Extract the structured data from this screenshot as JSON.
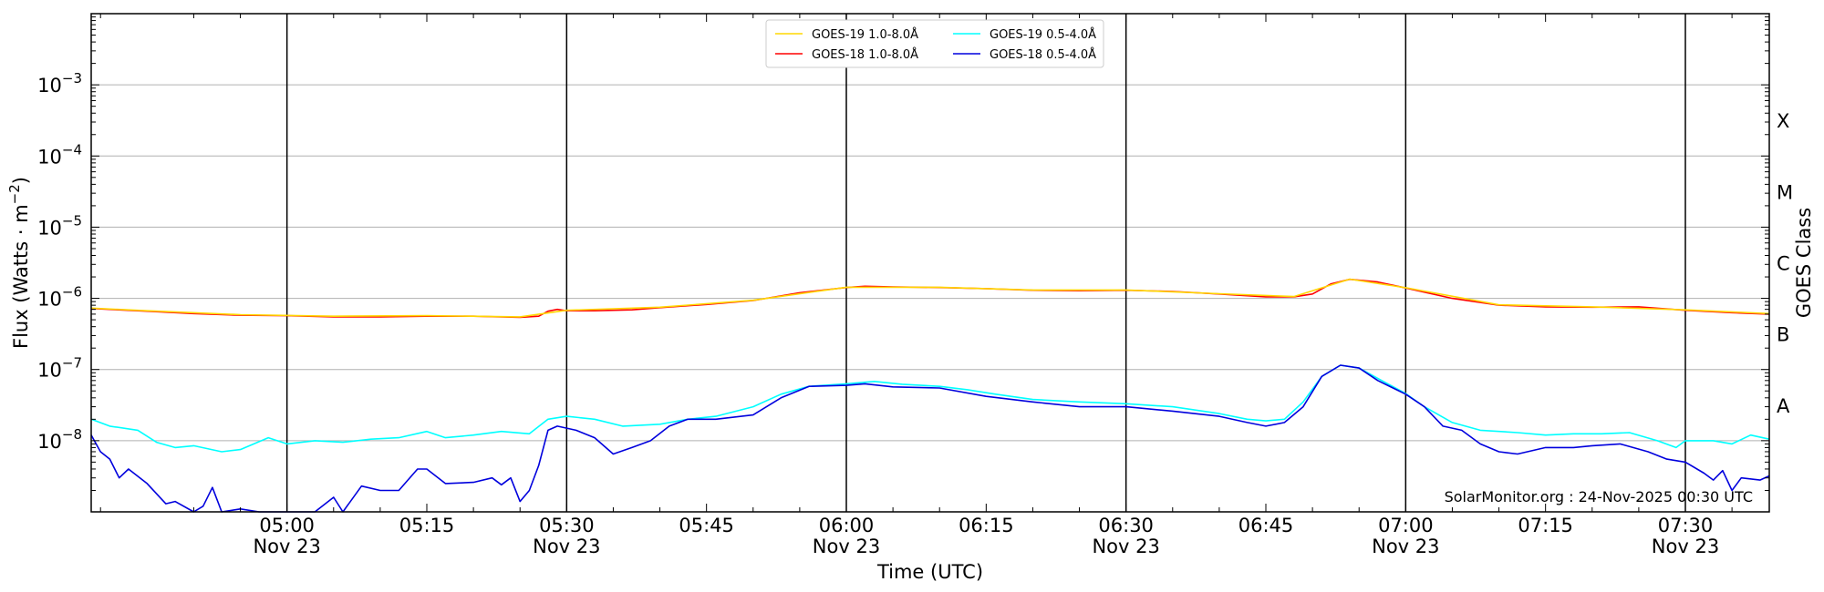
{
  "chart_data": {
    "type": "line",
    "xlabel": "Time (UTC)",
    "ylabel": "Flux (Watts · m^-2)",
    "ylabel_right": "GOES Class",
    "yscale": "log",
    "ylim": [
      1e-09,
      0.01
    ],
    "xlim": [
      "2025-11-23 04:39",
      "2025-11-23 07:39"
    ],
    "grid": "horizontal lines at each decade",
    "legend_position": "top-center",
    "credit": "SolarMonitor.org : 24-Nov-2025 00:30 UTC",
    "yticks": [
      {
        "value": 0.001,
        "base": "10",
        "exp": "−3"
      },
      {
        "value": 0.0001,
        "base": "10",
        "exp": "−4"
      },
      {
        "value": 1e-05,
        "base": "10",
        "exp": "−5"
      },
      {
        "value": 1e-06,
        "base": "10",
        "exp": "−6"
      },
      {
        "value": 1e-07,
        "base": "10",
        "exp": "−7"
      },
      {
        "value": 1e-08,
        "base": "10",
        "exp": "−8"
      }
    ],
    "xticks": [
      {
        "time": "2025-11-23 05:00",
        "label": "05:00",
        "date": "Nov 23",
        "vline": true
      },
      {
        "time": "2025-11-23 05:15",
        "label": "05:15",
        "date": "",
        "vline": false
      },
      {
        "time": "2025-11-23 05:30",
        "label": "05:30",
        "date": "Nov 23",
        "vline": true
      },
      {
        "time": "2025-11-23 05:45",
        "label": "05:45",
        "date": "",
        "vline": false
      },
      {
        "time": "2025-11-23 06:00",
        "label": "06:00",
        "date": "Nov 23",
        "vline": true
      },
      {
        "time": "2025-11-23 06:15",
        "label": "06:15",
        "date": "",
        "vline": false
      },
      {
        "time": "2025-11-23 06:30",
        "label": "06:30",
        "date": "Nov 23",
        "vline": true
      },
      {
        "time": "2025-11-23 06:45",
        "label": "06:45",
        "date": "",
        "vline": false
      },
      {
        "time": "2025-11-23 07:00",
        "label": "07:00",
        "date": "Nov 23",
        "vline": true
      },
      {
        "time": "2025-11-23 07:15",
        "label": "07:15",
        "date": "",
        "vline": false
      },
      {
        "time": "2025-11-23 07:30",
        "label": "07:30",
        "date": "Nov 23",
        "vline": true
      }
    ],
    "goes_classes": [
      {
        "label": "X",
        "value": 0.000316
      },
      {
        "label": "M",
        "value": 3.16e-05
      },
      {
        "label": "C",
        "value": 3.16e-06
      },
      {
        "label": "B",
        "value": 3.16e-07
      },
      {
        "label": "A",
        "value": 3.16e-08
      }
    ],
    "legend": [
      {
        "name": "GOES-19 1.0-8.0Å",
        "color": "#ffd700"
      },
      {
        "name": "GOES-19 0.5-4.0Å",
        "color": "#00ffff"
      },
      {
        "name": "GOES-18 1.0-8.0Å",
        "color": "#ff0000"
      },
      {
        "name": "GOES-18 0.5-4.0Å",
        "color": "#0000dd"
      }
    ],
    "series": [
      {
        "name": "GOES-18 1.0-8.0Å",
        "color": "#ff0000",
        "points": [
          [
            "04:39",
            7.2e-07
          ],
          [
            "04:45",
            6.6e-07
          ],
          [
            "04:50",
            6.1e-07
          ],
          [
            "04:55",
            5.8e-07
          ],
          [
            "05:00",
            5.7e-07
          ],
          [
            "05:05",
            5.5e-07
          ],
          [
            "05:10",
            5.5e-07
          ],
          [
            "05:15",
            5.6e-07
          ],
          [
            "05:20",
            5.6e-07
          ],
          [
            "05:25",
            5.4e-07
          ],
          [
            "05:27",
            5.6e-07
          ],
          [
            "05:28",
            6.6e-07
          ],
          [
            "05:29",
            7e-07
          ],
          [
            "05:30",
            6.7e-07
          ],
          [
            "05:33",
            6.7e-07
          ],
          [
            "05:37",
            6.9e-07
          ],
          [
            "05:40",
            7.4e-07
          ],
          [
            "05:45",
            8.2e-07
          ],
          [
            "05:50",
            9.3e-07
          ],
          [
            "05:55",
            1.2e-06
          ],
          [
            "06:00",
            1.42e-06
          ],
          [
            "06:02",
            1.48e-06
          ],
          [
            "06:05",
            1.45e-06
          ],
          [
            "06:10",
            1.42e-06
          ],
          [
            "06:15",
            1.37e-06
          ],
          [
            "06:20",
            1.3e-06
          ],
          [
            "06:25",
            1.28e-06
          ],
          [
            "06:30",
            1.3e-06
          ],
          [
            "06:35",
            1.25e-06
          ],
          [
            "06:40",
            1.15e-06
          ],
          [
            "06:45",
            1.05e-06
          ],
          [
            "06:48",
            1.05e-06
          ],
          [
            "06:50",
            1.15e-06
          ],
          [
            "06:52",
            1.6e-06
          ],
          [
            "06:54",
            1.85e-06
          ],
          [
            "06:57",
            1.7e-06
          ],
          [
            "07:00",
            1.4e-06
          ],
          [
            "07:05",
            1e-06
          ],
          [
            "07:10",
            8e-07
          ],
          [
            "07:15",
            7.6e-07
          ],
          [
            "07:20",
            7.5e-07
          ],
          [
            "07:25",
            7.6e-07
          ],
          [
            "07:30",
            6.8e-07
          ],
          [
            "07:35",
            6.3e-07
          ],
          [
            "07:39",
            6e-07
          ]
        ]
      },
      {
        "name": "GOES-19 1.0-8.0Å",
        "color": "#ffd700",
        "points": [
          [
            "04:39",
            7.3e-07
          ],
          [
            "04:45",
            6.7e-07
          ],
          [
            "04:55",
            5.9e-07
          ],
          [
            "05:05",
            5.6e-07
          ],
          [
            "05:15",
            5.7e-07
          ],
          [
            "05:25",
            5.5e-07
          ],
          [
            "05:30",
            6.8e-07
          ],
          [
            "05:40",
            7.5e-07
          ],
          [
            "05:50",
            9.4e-07
          ],
          [
            "06:00",
            1.43e-06
          ],
          [
            "06:10",
            1.43e-06
          ],
          [
            "06:20",
            1.31e-06
          ],
          [
            "06:30",
            1.31e-06
          ],
          [
            "06:40",
            1.16e-06
          ],
          [
            "06:48",
            1.06e-06
          ],
          [
            "06:54",
            1.86e-06
          ],
          [
            "07:00",
            1.41e-06
          ],
          [
            "07:10",
            8.1e-07
          ],
          [
            "07:20",
            7.6e-07
          ],
          [
            "07:30",
            6.9e-07
          ],
          [
            "07:39",
            6.1e-07
          ]
        ]
      },
      {
        "name": "GOES-19 0.5-4.0Å",
        "color": "#00ffff",
        "points": [
          [
            "04:39",
            2e-08
          ],
          [
            "04:41",
            1.6e-08
          ],
          [
            "04:44",
            1.4e-08
          ],
          [
            "04:46",
            9.5e-09
          ],
          [
            "04:48",
            8e-09
          ],
          [
            "04:50",
            8.5e-09
          ],
          [
            "04:53",
            7e-09
          ],
          [
            "04:55",
            7.5e-09
          ],
          [
            "04:58",
            1.1e-08
          ],
          [
            "05:00",
            9e-09
          ],
          [
            "05:03",
            1e-08
          ],
          [
            "05:06",
            9.5e-09
          ],
          [
            "05:09",
            1.05e-08
          ],
          [
            "05:12",
            1.1e-08
          ],
          [
            "05:15",
            1.35e-08
          ],
          [
            "05:17",
            1.1e-08
          ],
          [
            "05:20",
            1.2e-08
          ],
          [
            "05:23",
            1.35e-08
          ],
          [
            "05:26",
            1.25e-08
          ],
          [
            "05:28",
            2e-08
          ],
          [
            "05:30",
            2.2e-08
          ],
          [
            "05:33",
            2e-08
          ],
          [
            "05:36",
            1.6e-08
          ],
          [
            "05:40",
            1.7e-08
          ],
          [
            "05:43",
            2e-08
          ],
          [
            "05:46",
            2.2e-08
          ],
          [
            "05:50",
            3e-08
          ],
          [
            "05:53",
            4.5e-08
          ],
          [
            "05:56",
            5.8e-08
          ],
          [
            "06:00",
            6.3e-08
          ],
          [
            "06:03",
            6.8e-08
          ],
          [
            "06:06",
            6.2e-08
          ],
          [
            "06:10",
            5.8e-08
          ],
          [
            "06:13",
            5.2e-08
          ],
          [
            "06:16",
            4.5e-08
          ],
          [
            "06:20",
            3.8e-08
          ],
          [
            "06:25",
            3.5e-08
          ],
          [
            "06:30",
            3.3e-08
          ],
          [
            "06:35",
            3e-08
          ],
          [
            "06:40",
            2.4e-08
          ],
          [
            "06:43",
            2e-08
          ],
          [
            "06:45",
            1.9e-08
          ],
          [
            "06:47",
            2e-08
          ],
          [
            "06:49",
            3.5e-08
          ],
          [
            "06:51",
            8e-08
          ],
          [
            "06:53",
            1.15e-07
          ],
          [
            "06:55",
            1.05e-07
          ],
          [
            "06:57",
            7.5e-08
          ],
          [
            "07:00",
            4.6e-08
          ],
          [
            "07:02",
            3e-08
          ],
          [
            "07:05",
            1.8e-08
          ],
          [
            "07:08",
            1.4e-08
          ],
          [
            "07:12",
            1.3e-08
          ],
          [
            "07:15",
            1.2e-08
          ],
          [
            "07:18",
            1.25e-08
          ],
          [
            "07:21",
            1.25e-08
          ],
          [
            "07:24",
            1.3e-08
          ],
          [
            "07:27",
            1e-08
          ],
          [
            "07:29",
            8e-09
          ],
          [
            "07:30",
            1e-08
          ],
          [
            "07:33",
            1e-08
          ],
          [
            "07:35",
            9e-09
          ],
          [
            "07:37",
            1.2e-08
          ],
          [
            "07:39",
            1.05e-08
          ]
        ]
      },
      {
        "name": "GOES-18 0.5-4.0Å",
        "color": "#0000dd",
        "points": [
          [
            "04:39",
            1.2e-08
          ],
          [
            "04:40",
            7e-09
          ],
          [
            "04:41",
            5.5e-09
          ],
          [
            "04:42",
            3e-09
          ],
          [
            "04:43",
            4e-09
          ],
          [
            "04:45",
            2.5e-09
          ],
          [
            "04:47",
            1.3e-09
          ],
          [
            "04:48",
            1.4e-09
          ],
          [
            "04:50",
            1e-09
          ],
          [
            "04:51",
            1.2e-09
          ],
          [
            "04:52",
            2.2e-09
          ],
          [
            "04:53",
            1e-09
          ],
          [
            "04:55",
            1.1e-09
          ],
          [
            "04:57",
            1e-09
          ],
          [
            "05:00",
            1e-09
          ],
          [
            "05:03",
            1e-09
          ],
          [
            "05:05",
            1.6e-09
          ],
          [
            "05:06",
            1e-09
          ],
          [
            "05:08",
            2.3e-09
          ],
          [
            "05:10",
            2e-09
          ],
          [
            "05:12",
            2e-09
          ],
          [
            "05:14",
            4e-09
          ],
          [
            "05:15",
            4e-09
          ],
          [
            "05:17",
            2.5e-09
          ],
          [
            "05:20",
            2.6e-09
          ],
          [
            "05:22",
            3e-09
          ],
          [
            "05:23",
            2.4e-09
          ],
          [
            "05:24",
            3e-09
          ],
          [
            "05:25",
            1.4e-09
          ],
          [
            "05:26",
            2e-09
          ],
          [
            "05:27",
            4.5e-09
          ],
          [
            "05:28",
            1.4e-08
          ],
          [
            "05:29",
            1.6e-08
          ],
          [
            "05:30",
            1.5e-08
          ],
          [
            "05:31",
            1.4e-08
          ],
          [
            "05:33",
            1.1e-08
          ],
          [
            "05:35",
            6.5e-09
          ],
          [
            "05:37",
            8e-09
          ],
          [
            "05:39",
            1e-08
          ],
          [
            "05:41",
            1.6e-08
          ],
          [
            "05:43",
            2e-08
          ],
          [
            "05:46",
            2e-08
          ],
          [
            "05:50",
            2.3e-08
          ],
          [
            "05:53",
            4e-08
          ],
          [
            "05:56",
            5.8e-08
          ],
          [
            "06:00",
            6e-08
          ],
          [
            "06:02",
            6.3e-08
          ],
          [
            "06:05",
            5.7e-08
          ],
          [
            "06:10",
            5.5e-08
          ],
          [
            "06:15",
            4.2e-08
          ],
          [
            "06:20",
            3.5e-08
          ],
          [
            "06:25",
            3e-08
          ],
          [
            "06:30",
            3e-08
          ],
          [
            "06:35",
            2.6e-08
          ],
          [
            "06:40",
            2.2e-08
          ],
          [
            "06:43",
            1.8e-08
          ],
          [
            "06:45",
            1.6e-08
          ],
          [
            "06:47",
            1.8e-08
          ],
          [
            "06:49",
            3e-08
          ],
          [
            "06:51",
            8e-08
          ],
          [
            "06:53",
            1.15e-07
          ],
          [
            "06:55",
            1.05e-07
          ],
          [
            "06:57",
            7e-08
          ],
          [
            "07:00",
            4.5e-08
          ],
          [
            "07:02",
            3e-08
          ],
          [
            "07:04",
            1.6e-08
          ],
          [
            "07:06",
            1.4e-08
          ],
          [
            "07:08",
            9e-09
          ],
          [
            "07:10",
            7e-09
          ],
          [
            "07:12",
            6.5e-09
          ],
          [
            "07:15",
            8e-09
          ],
          [
            "07:18",
            8e-09
          ],
          [
            "07:20",
            8.5e-09
          ],
          [
            "07:23",
            9e-09
          ],
          [
            "07:26",
            7e-09
          ],
          [
            "07:28",
            5.5e-09
          ],
          [
            "07:30",
            5e-09
          ],
          [
            "07:32",
            3.5e-09
          ],
          [
            "07:33",
            2.8e-09
          ],
          [
            "07:34",
            3.8e-09
          ],
          [
            "07:35",
            2e-09
          ],
          [
            "07:36",
            3e-09
          ],
          [
            "07:38",
            2.8e-09
          ],
          [
            "07:39",
            3.2e-09
          ]
        ]
      }
    ]
  }
}
